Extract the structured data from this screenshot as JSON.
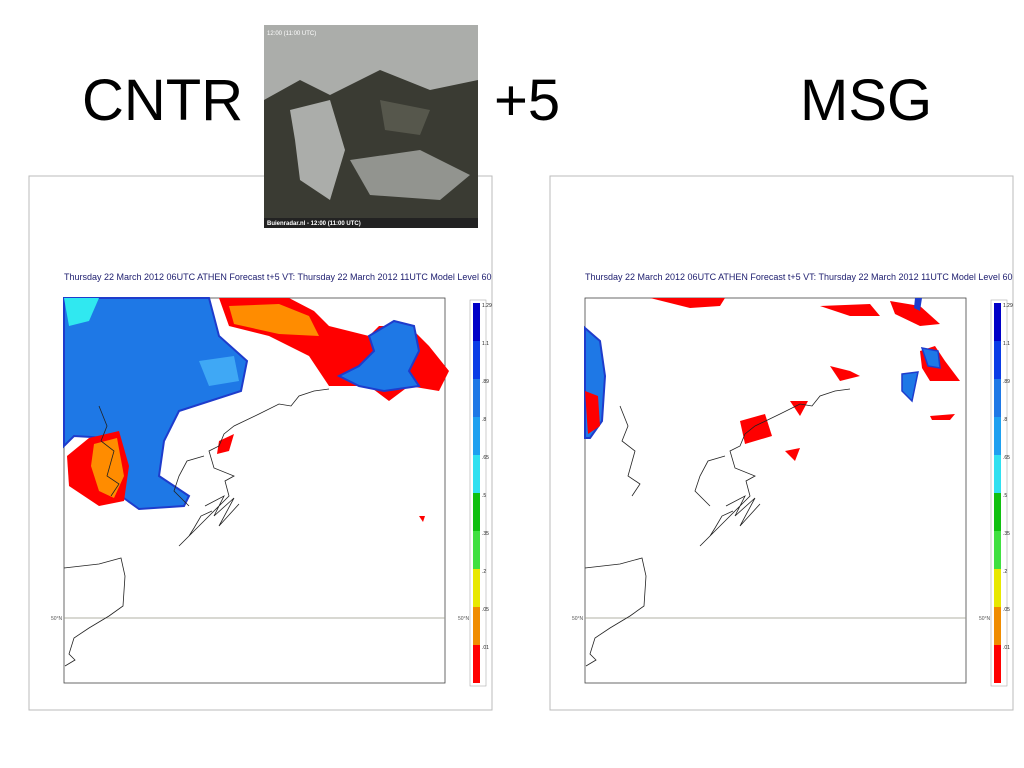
{
  "header": {
    "left": "CNTR",
    "middle": "+5",
    "right": "MSG"
  },
  "satellite": {
    "timestamp": "12:00 (11:00 UTC)",
    "caption": "Buienradar.nl - 12:00 (11:00 UTC)"
  },
  "panels": [
    {
      "title": "Thursday 22 March 2012 06UTC ATHEN  Forecast t+5 VT: Thursday 22 March 2012 11UTC Model Level 60",
      "lat_label_left": "50°N",
      "lat_label_right": "50°N",
      "legend": [
        "1.29",
        "1.1",
        ".89",
        ".8",
        ".65",
        ".5",
        ".35",
        ".2",
        ".05",
        ".01"
      ]
    },
    {
      "title": "Thursday 22 March 2012 06UTC ATHEN  Forecast t+5 VT: Thursday 22 March 2012 11UTC Model Level 60",
      "lat_label_left": "50°N",
      "lat_label_right": "50°N",
      "legend": [
        "1.29",
        "1.1",
        ".89",
        ".8",
        ".65",
        ".5",
        ".35",
        ".2",
        ".05",
        ".01"
      ]
    }
  ]
}
